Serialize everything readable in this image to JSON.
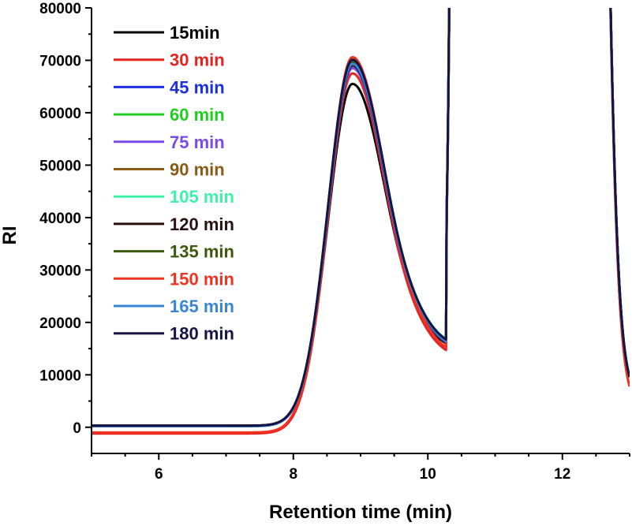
{
  "chart_data": {
    "type": "line",
    "xlabel": "Retention time (min)",
    "ylabel": "RI",
    "xlim": [
      5,
      13
    ],
    "ylim": [
      -5000,
      80000
    ],
    "xticks": [
      6,
      8,
      10,
      12
    ],
    "yticks": [
      0,
      10000,
      20000,
      30000,
      40000,
      50000,
      60000,
      70000,
      80000
    ],
    "legend_position": "top-left",
    "series": [
      {
        "name": "15min",
        "color": "#000000",
        "baseline": 300,
        "peak": 65500,
        "valley": 14200
      },
      {
        "name": "30 min",
        "color": "#e8231f",
        "baseline": -1200,
        "peak": 67500,
        "valley": 12800
      },
      {
        "name": "45 min",
        "color": "#1b2ee0",
        "baseline": 200,
        "peak": 69500,
        "valley": 14500
      },
      {
        "name": "60 min",
        "color": "#1fcf1f",
        "baseline": 250,
        "peak": 70000,
        "valley": 14800
      },
      {
        "name": "75 min",
        "color": "#7a4be8",
        "baseline": 200,
        "peak": 68500,
        "valley": 14300
      },
      {
        "name": "90 min",
        "color": "#8b5a14",
        "baseline": 300,
        "peak": 69800,
        "valley": 14600
      },
      {
        "name": "105 min",
        "color": "#3df2a8",
        "baseline": 250,
        "peak": 70200,
        "valley": 14900
      },
      {
        "name": "120 min",
        "color": "#2a1212",
        "baseline": 300,
        "peak": 69000,
        "valley": 14400
      },
      {
        "name": "135 min",
        "color": "#3d5a0c",
        "baseline": 250,
        "peak": 69600,
        "valley": 14700
      },
      {
        "name": "150 min",
        "color": "#ee3322",
        "baseline": -1000,
        "peak": 70600,
        "valley": 13200
      },
      {
        "name": "165 min",
        "color": "#3a86d6",
        "baseline": 200,
        "peak": 69300,
        "valley": 14500
      },
      {
        "name": "180 min",
        "color": "#151545",
        "baseline": 300,
        "peak": 70100,
        "valley": 14800
      }
    ]
  }
}
